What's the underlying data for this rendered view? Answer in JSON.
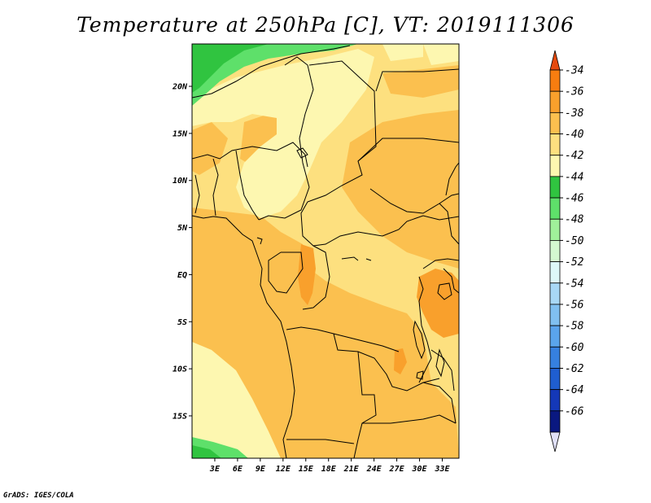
{
  "title": "Temperature at 250hPa [C], VT: 2019111306",
  "credit": "GrADS: IGES/COLA",
  "map": {
    "lat_labels": [
      {
        "text": "20N",
        "lat": 20
      },
      {
        "text": "15N",
        "lat": 15
      },
      {
        "text": "10N",
        "lat": 10
      },
      {
        "text": "5N",
        "lat": 5
      },
      {
        "text": "EQ",
        "lat": 0
      },
      {
        "text": "5S",
        "lat": -5
      },
      {
        "text": "10S",
        "lat": -10
      },
      {
        "text": "15S",
        "lat": -15
      }
    ],
    "lon_labels": [
      {
        "text": "3E",
        "lon": 3
      },
      {
        "text": "6E",
        "lon": 6
      },
      {
        "text": "9E",
        "lon": 9
      },
      {
        "text": "12E",
        "lon": 12
      },
      {
        "text": "15E",
        "lon": 15
      },
      {
        "text": "18E",
        "lon": 18
      },
      {
        "text": "21E",
        "lon": 21
      },
      {
        "text": "24E",
        "lon": 24
      },
      {
        "text": "27E",
        "lon": 27
      },
      {
        "text": "30E",
        "lon": 30
      },
      {
        "text": "33E",
        "lon": 33
      }
    ]
  },
  "colorbar": {
    "labels": [
      "-34",
      "-36",
      "-38",
      "-40",
      "-42",
      "-44",
      "-46",
      "-48",
      "-50",
      "-52",
      "-54",
      "-56",
      "-58",
      "-60",
      "-62",
      "-64",
      "-66"
    ],
    "colors": [
      "#e64a0e",
      "#f77d10",
      "#f9a02c",
      "#fbc04f",
      "#fde07f",
      "#fdf7b0",
      "#30c440",
      "#5ee06a",
      "#a0f09a",
      "#d4f8d0",
      "#ddf8f8",
      "#a8d8f5",
      "#80c0f0",
      "#5aa4ec",
      "#3680e0",
      "#1f5ed0",
      "#1438b8",
      "#0a1880",
      "#e0e0f8"
    ]
  },
  "colors": {
    "land_base": "#fde07f",
    "warm": "#fbc04f",
    "warmer": "#f9a02c",
    "pale": "#fdf7b0",
    "green_dark": "#30c440",
    "green_mid": "#5ee06a"
  }
}
